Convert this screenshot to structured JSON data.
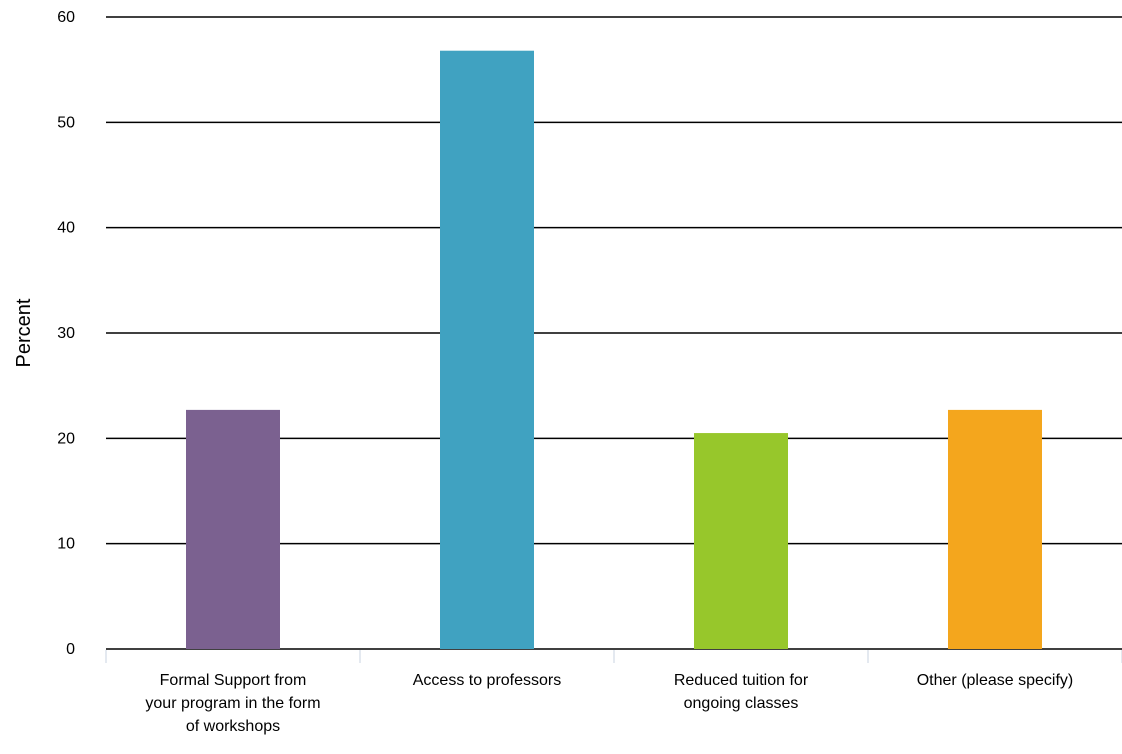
{
  "chart_data": {
    "type": "bar",
    "title": "",
    "xlabel": "",
    "ylabel": "Percent",
    "ylim": [
      0,
      60
    ],
    "yticks": [
      0,
      10,
      20,
      30,
      40,
      50,
      60
    ],
    "grid": true,
    "categories": [
      [
        "Formal Support from",
        "your program in the form",
        "of workshops"
      ],
      [
        "Access to professors"
      ],
      [
        "Reduced tuition for",
        "ongoing classes"
      ],
      [
        "Other (please specify)"
      ]
    ],
    "values": [
      22.7,
      56.8,
      20.5,
      22.7
    ],
    "colors": [
      "#7b6190",
      "#40a2c1",
      "#97c72b",
      "#f4a61d"
    ]
  }
}
